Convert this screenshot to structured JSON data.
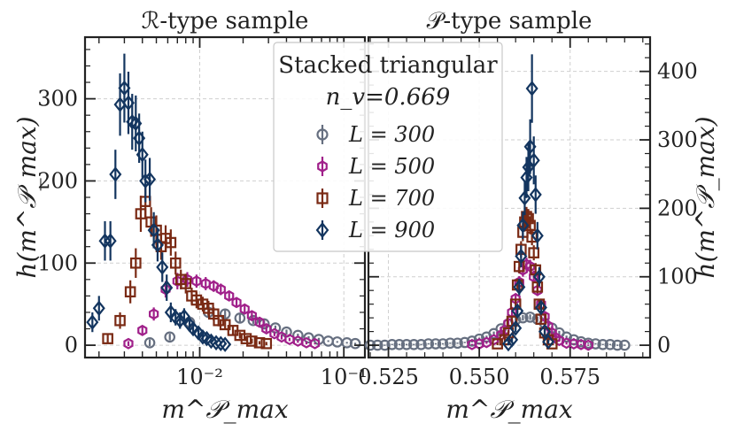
{
  "chart_data": [
    {
      "type": "scatter",
      "title": "ℛ-type sample",
      "xlabel": "m^𝒫_max",
      "ylabel": "h(m^𝒫_max)",
      "xscale": "log",
      "xlim": [
        0.0016,
        0.14
      ],
      "ylim": [
        -15,
        375
      ],
      "xticks": [
        {
          "v": 0.01,
          "label": "10⁻²"
        },
        {
          "v": 0.1,
          "label": "10⁻¹"
        }
      ],
      "yticks": [
        {
          "v": 0,
          "label": "0"
        },
        {
          "v": 100,
          "label": "100"
        },
        {
          "v": 200,
          "label": "200"
        },
        {
          "v": 300,
          "label": "300"
        }
      ],
      "series": [
        {
          "name": "L = 300",
          "color": "#666f80",
          "marker": "circle",
          "x": [
            0.0045,
            0.0062,
            0.0085,
            0.0115,
            0.015,
            0.019,
            0.0235,
            0.028,
            0.0335,
            0.04,
            0.048,
            0.057,
            0.067,
            0.078,
            0.09,
            0.105,
            0.12
          ],
          "y": [
            3,
            10,
            28,
            40,
            38,
            33,
            30,
            26,
            21,
            16,
            12,
            9,
            7,
            5,
            4,
            3,
            2
          ],
          "err": [
            4,
            4,
            6,
            6,
            5,
            5,
            4,
            4,
            3,
            3,
            2,
            2,
            2,
            1,
            1,
            1,
            1
          ]
        },
        {
          "name": "L = 500",
          "color": "#a0208a",
          "marker": "hexagon",
          "x": [
            0.0032,
            0.004,
            0.0048,
            0.0058,
            0.007,
            0.0082,
            0.0095,
            0.011,
            0.0125,
            0.014,
            0.016,
            0.018,
            0.0205,
            0.023,
            0.026,
            0.029,
            0.033,
            0.037,
            0.042,
            0.048,
            0.055,
            0.063
          ],
          "y": [
            2,
            18,
            38,
            68,
            78,
            80,
            78,
            75,
            72,
            68,
            60,
            52,
            44,
            36,
            28,
            20,
            14,
            10,
            7,
            5,
            3,
            2
          ],
          "err": [
            3,
            6,
            8,
            10,
            10,
            9,
            8,
            8,
            7,
            7,
            6,
            6,
            5,
            5,
            4,
            4,
            3,
            3,
            2,
            2,
            2,
            1
          ]
        },
        {
          "name": "L = 700",
          "color": "#7a2a14",
          "marker": "square",
          "x": [
            0.0023,
            0.0028,
            0.0033,
            0.0036,
            0.0039,
            0.0042,
            0.0046,
            0.005,
            0.0054,
            0.0058,
            0.0063,
            0.0068,
            0.0074,
            0.008,
            0.0088,
            0.0095,
            0.0105,
            0.0115,
            0.0125,
            0.0135,
            0.015,
            0.017,
            0.019,
            0.021,
            0.023,
            0.026,
            0.029
          ],
          "y": [
            8,
            30,
            65,
            100,
            160,
            175,
            150,
            140,
            120,
            130,
            125,
            100,
            80,
            75,
            60,
            55,
            50,
            45,
            38,
            30,
            25,
            18,
            12,
            8,
            5,
            3,
            2
          ],
          "err": [
            6,
            10,
            14,
            18,
            22,
            20,
            18,
            18,
            16,
            16,
            16,
            14,
            12,
            12,
            10,
            10,
            9,
            9,
            8,
            7,
            6,
            5,
            4,
            3,
            3,
            2,
            2
          ]
        },
        {
          "name": "L = 900",
          "color": "#13355f",
          "marker": "diamond",
          "x": [
            0.0018,
            0.002,
            0.0022,
            0.0024,
            0.0026,
            0.0028,
            0.003,
            0.0032,
            0.0034,
            0.0036,
            0.0038,
            0.004,
            0.0042,
            0.0045,
            0.0048,
            0.0051,
            0.0055,
            0.0059,
            0.0063,
            0.0068,
            0.0073,
            0.0078,
            0.0085,
            0.009,
            0.0098,
            0.0105,
            0.0112,
            0.012,
            0.013,
            0.014,
            0.015
          ],
          "y": [
            28,
            45,
            127,
            127,
            208,
            293,
            313,
            295,
            272,
            270,
            252,
            232,
            200,
            202,
            140,
            122,
            95,
            70,
            40,
            34,
            30,
            35,
            25,
            20,
            15,
            10,
            8,
            5,
            3,
            2,
            1
          ],
          "err": [
            12,
            15,
            24,
            24,
            30,
            38,
            42,
            38,
            34,
            34,
            30,
            28,
            26,
            26,
            22,
            20,
            18,
            16,
            12,
            10,
            10,
            10,
            8,
            8,
            6,
            5,
            4,
            3,
            2,
            2,
            1
          ]
        }
      ]
    },
    {
      "type": "scatter",
      "title": "𝒫-type sample",
      "xlabel": "m^𝒫_max",
      "ylabel": "h(m^𝒫_max)",
      "xscale": "linear",
      "xlim": [
        0.5195,
        0.597
      ],
      "ylim": [
        -18,
        450
      ],
      "xticks": [
        {
          "v": 0.525,
          "label": "0.525"
        },
        {
          "v": 0.55,
          "label": "0.550"
        },
        {
          "v": 0.575,
          "label": "0.575"
        }
      ],
      "yticks": [
        {
          "v": 0,
          "label": "0"
        },
        {
          "v": 100,
          "label": "100"
        },
        {
          "v": 200,
          "label": "200"
        },
        {
          "v": 300,
          "label": "300"
        },
        {
          "v": 400,
          "label": "400"
        }
      ],
      "series": [
        {
          "name": "L = 300",
          "color": "#666f80",
          "marker": "circle",
          "x": [
            0.52,
            0.522,
            0.524,
            0.526,
            0.528,
            0.53,
            0.532,
            0.534,
            0.536,
            0.538,
            0.54,
            0.542,
            0.544,
            0.546,
            0.548,
            0.55,
            0.552,
            0.554,
            0.556,
            0.558,
            0.56,
            0.562,
            0.564,
            0.566,
            0.568,
            0.57,
            0.572,
            0.574,
            0.576,
            0.578,
            0.58,
            0.582,
            0.584,
            0.586,
            0.588,
            0.59
          ],
          "y": [
            0,
            0,
            0,
            1,
            1,
            1,
            1,
            1,
            2,
            2,
            2,
            3,
            3,
            4,
            6,
            9,
            12,
            17,
            24,
            31,
            37,
            40,
            41,
            38,
            32,
            25,
            18,
            12,
            8,
            5,
            3,
            2,
            1,
            1,
            0,
            0
          ],
          "err": [
            1,
            1,
            1,
            1,
            1,
            1,
            1,
            1,
            1,
            1,
            1,
            1,
            1,
            1,
            2,
            2,
            2,
            3,
            3,
            4,
            4,
            4,
            4,
            4,
            4,
            3,
            3,
            2,
            2,
            1,
            1,
            1,
            1,
            1,
            1,
            1
          ]
        },
        {
          "name": "L = 500",
          "color": "#a0208a",
          "marker": "hexagon",
          "x": [
            0.548,
            0.55,
            0.552,
            0.554,
            0.556,
            0.557,
            0.558,
            0.559,
            0.56,
            0.561,
            0.562,
            0.563,
            0.564,
            0.565,
            0.566,
            0.567,
            0.568,
            0.569,
            0.57,
            0.571,
            0.572,
            0.574,
            0.576,
            0.578,
            0.58
          ],
          "y": [
            1,
            2,
            4,
            8,
            15,
            22,
            32,
            48,
            68,
            92,
            110,
            118,
            115,
            100,
            80,
            60,
            42,
            28,
            18,
            11,
            7,
            3,
            2,
            1,
            0
          ],
          "err": [
            1,
            1,
            2,
            2,
            3,
            4,
            5,
            6,
            8,
            9,
            10,
            10,
            10,
            9,
            8,
            7,
            6,
            5,
            4,
            3,
            2,
            2,
            1,
            1,
            1
          ]
        },
        {
          "name": "L = 700",
          "color": "#7a2a14",
          "marker": "square",
          "x": [
            0.555,
            0.557,
            0.558,
            0.559,
            0.56,
            0.5605,
            0.561,
            0.5615,
            0.562,
            0.5625,
            0.563,
            0.5635,
            0.564,
            0.5645,
            0.565,
            0.5655,
            0.566,
            0.5665,
            0.567,
            0.568,
            0.569,
            0.57
          ],
          "y": [
            2,
            8,
            18,
            35,
            60,
            88,
            115,
            140,
            165,
            180,
            188,
            185,
            175,
            158,
            135,
            110,
            85,
            60,
            38,
            18,
            8,
            2
          ],
          "err": [
            2,
            3,
            4,
            5,
            7,
            9,
            10,
            12,
            13,
            14,
            14,
            14,
            13,
            12,
            11,
            10,
            9,
            7,
            5,
            4,
            3,
            2
          ]
        },
        {
          "name": "L = 900",
          "color": "#13355f",
          "marker": "diamond",
          "x": [
            0.558,
            0.559,
            0.56,
            0.5605,
            0.561,
            0.5615,
            0.562,
            0.5625,
            0.563,
            0.5635,
            0.564,
            0.5645,
            0.565,
            0.5655,
            0.566,
            0.5665,
            0.567,
            0.568,
            0.569
          ],
          "y": [
            2,
            8,
            25,
            50,
            85,
            130,
            175,
            215,
            245,
            260,
            290,
            375,
            270,
            220,
            160,
            100,
            55,
            20,
            5
          ],
          "err": [
            2,
            3,
            6,
            9,
            12,
            16,
            20,
            25,
            30,
            35,
            40,
            50,
            35,
            28,
            20,
            14,
            9,
            5,
            3
          ]
        }
      ]
    }
  ],
  "legend": {
    "title_line1": "Stacked triangular",
    "title_line2": "n_v=0.669",
    "entries": [
      "L = 300",
      "L = 500",
      "L = 700",
      "L = 900"
    ]
  }
}
